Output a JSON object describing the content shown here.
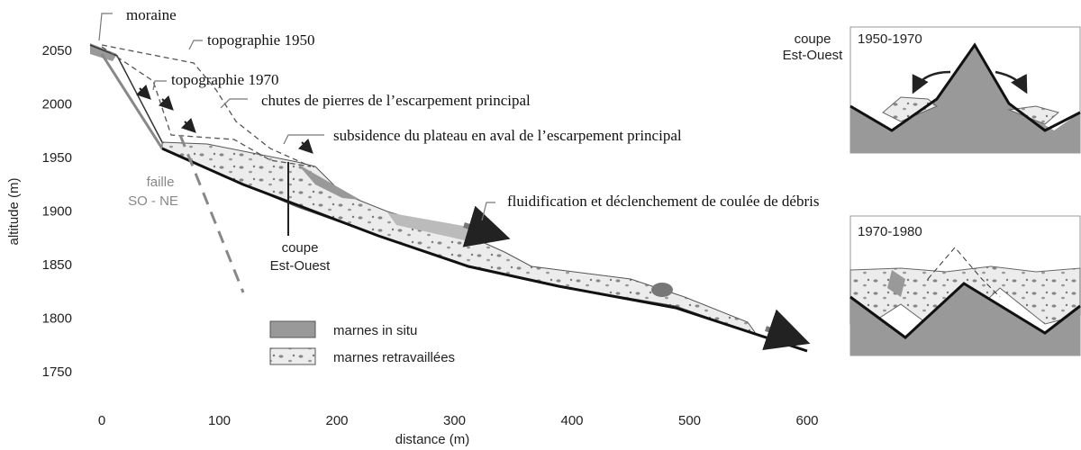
{
  "axes": {
    "x_label": "distance (m)",
    "y_label": "altitude (m)",
    "x_ticks": [
      0,
      100,
      200,
      300,
      400,
      500,
      600
    ],
    "y_ticks": [
      1750,
      1800,
      1850,
      1900,
      1950,
      2000,
      2050
    ]
  },
  "annotations": {
    "moraine": "moraine",
    "topo_1950": "topographie 1950",
    "topo_1970": "topographie 1970",
    "chutes": "chutes de pierres de l’escarpement principal",
    "subsidence": "subsidence du plateau en aval de l’escarpement principal",
    "fluidification": "fluidification et déclenchement de coulée de débris",
    "faille": "faille",
    "faille_dir": "SO - NE",
    "coupe": "coupe",
    "coupe_dir": "Est-Ouest"
  },
  "legend": [
    {
      "label": "marnes in situ"
    },
    {
      "label": "marnes retravaillées"
    }
  ],
  "insets": [
    {
      "title": "1950-1970"
    },
    {
      "title": "1970-1980"
    }
  ]
}
